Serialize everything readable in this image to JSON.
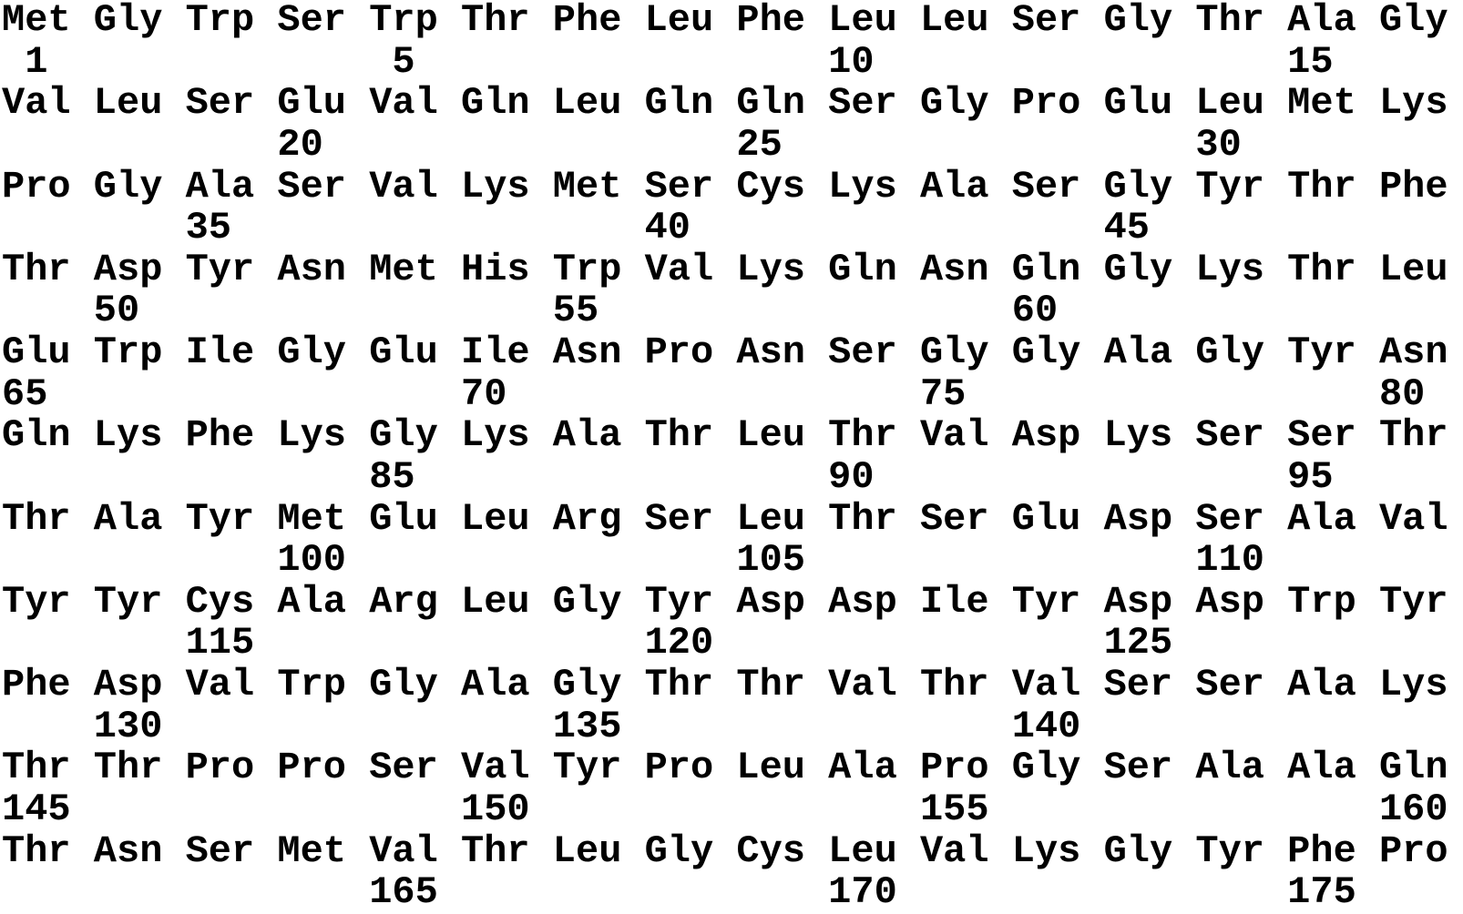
{
  "colors": {
    "background": "#ffffff",
    "text": "#000000"
  },
  "sequence": {
    "residues_per_row": 16,
    "rows": [
      {
        "residues": [
          "Met",
          "Gly",
          "Trp",
          "Ser",
          "Trp",
          "Thr",
          "Phe",
          "Leu",
          "Phe",
          "Leu",
          "Leu",
          "Ser",
          "Gly",
          "Thr",
          "Ala",
          "Gly"
        ],
        "numbers": [
          {
            "position": 1,
            "column": 0
          },
          {
            "position": 5,
            "column": 4
          },
          {
            "position": 10,
            "column": 9
          },
          {
            "position": 15,
            "column": 14
          }
        ]
      },
      {
        "residues": [
          "Val",
          "Leu",
          "Ser",
          "Glu",
          "Val",
          "Gln",
          "Leu",
          "Gln",
          "Gln",
          "Ser",
          "Gly",
          "Pro",
          "Glu",
          "Leu",
          "Met",
          "Lys"
        ],
        "numbers": [
          {
            "position": 20,
            "column": 3
          },
          {
            "position": 25,
            "column": 8
          },
          {
            "position": 30,
            "column": 13
          }
        ]
      },
      {
        "residues": [
          "Pro",
          "Gly",
          "Ala",
          "Ser",
          "Val",
          "Lys",
          "Met",
          "Ser",
          "Cys",
          "Lys",
          "Ala",
          "Ser",
          "Gly",
          "Tyr",
          "Thr",
          "Phe"
        ],
        "numbers": [
          {
            "position": 35,
            "column": 2
          },
          {
            "position": 40,
            "column": 7
          },
          {
            "position": 45,
            "column": 12
          }
        ]
      },
      {
        "residues": [
          "Thr",
          "Asp",
          "Tyr",
          "Asn",
          "Met",
          "His",
          "Trp",
          "Val",
          "Lys",
          "Gln",
          "Asn",
          "Gln",
          "Gly",
          "Lys",
          "Thr",
          "Leu"
        ],
        "numbers": [
          {
            "position": 50,
            "column": 1
          },
          {
            "position": 55,
            "column": 6
          },
          {
            "position": 60,
            "column": 11
          }
        ]
      },
      {
        "residues": [
          "Glu",
          "Trp",
          "Ile",
          "Gly",
          "Glu",
          "Ile",
          "Asn",
          "Pro",
          "Asn",
          "Ser",
          "Gly",
          "Gly",
          "Ala",
          "Gly",
          "Tyr",
          "Asn"
        ],
        "numbers": [
          {
            "position": 65,
            "column": 0
          },
          {
            "position": 70,
            "column": 5
          },
          {
            "position": 75,
            "column": 10
          },
          {
            "position": 80,
            "column": 15
          }
        ]
      },
      {
        "residues": [
          "Gln",
          "Lys",
          "Phe",
          "Lys",
          "Gly",
          "Lys",
          "Ala",
          "Thr",
          "Leu",
          "Thr",
          "Val",
          "Asp",
          "Lys",
          "Ser",
          "Ser",
          "Thr"
        ],
        "numbers": [
          {
            "position": 85,
            "column": 4
          },
          {
            "position": 90,
            "column": 9
          },
          {
            "position": 95,
            "column": 14
          }
        ]
      },
      {
        "residues": [
          "Thr",
          "Ala",
          "Tyr",
          "Met",
          "Glu",
          "Leu",
          "Arg",
          "Ser",
          "Leu",
          "Thr",
          "Ser",
          "Glu",
          "Asp",
          "Ser",
          "Ala",
          "Val"
        ],
        "numbers": [
          {
            "position": 100,
            "column": 3
          },
          {
            "position": 105,
            "column": 8
          },
          {
            "position": 110,
            "column": 13
          }
        ]
      },
      {
        "residues": [
          "Tyr",
          "Tyr",
          "Cys",
          "Ala",
          "Arg",
          "Leu",
          "Gly",
          "Tyr",
          "Asp",
          "Asp",
          "Ile",
          "Tyr",
          "Asp",
          "Asp",
          "Trp",
          "Tyr"
        ],
        "numbers": [
          {
            "position": 115,
            "column": 2
          },
          {
            "position": 120,
            "column": 7
          },
          {
            "position": 125,
            "column": 12
          }
        ]
      },
      {
        "residues": [
          "Phe",
          "Asp",
          "Val",
          "Trp",
          "Gly",
          "Ala",
          "Gly",
          "Thr",
          "Thr",
          "Val",
          "Thr",
          "Val",
          "Ser",
          "Ser",
          "Ala",
          "Lys"
        ],
        "numbers": [
          {
            "position": 130,
            "column": 1
          },
          {
            "position": 135,
            "column": 6
          },
          {
            "position": 140,
            "column": 11
          }
        ]
      },
      {
        "residues": [
          "Thr",
          "Thr",
          "Pro",
          "Pro",
          "Ser",
          "Val",
          "Tyr",
          "Pro",
          "Leu",
          "Ala",
          "Pro",
          "Gly",
          "Ser",
          "Ala",
          "Ala",
          "Gln"
        ],
        "numbers": [
          {
            "position": 145,
            "column": 0
          },
          {
            "position": 150,
            "column": 5
          },
          {
            "position": 155,
            "column": 10
          },
          {
            "position": 160,
            "column": 15
          }
        ]
      },
      {
        "residues": [
          "Thr",
          "Asn",
          "Ser",
          "Met",
          "Val",
          "Thr",
          "Leu",
          "Gly",
          "Cys",
          "Leu",
          "Val",
          "Lys",
          "Gly",
          "Tyr",
          "Phe",
          "Pro"
        ],
        "numbers": [
          {
            "position": 165,
            "column": 4
          },
          {
            "position": 170,
            "column": 9
          },
          {
            "position": 175,
            "column": 14
          }
        ]
      }
    ]
  }
}
